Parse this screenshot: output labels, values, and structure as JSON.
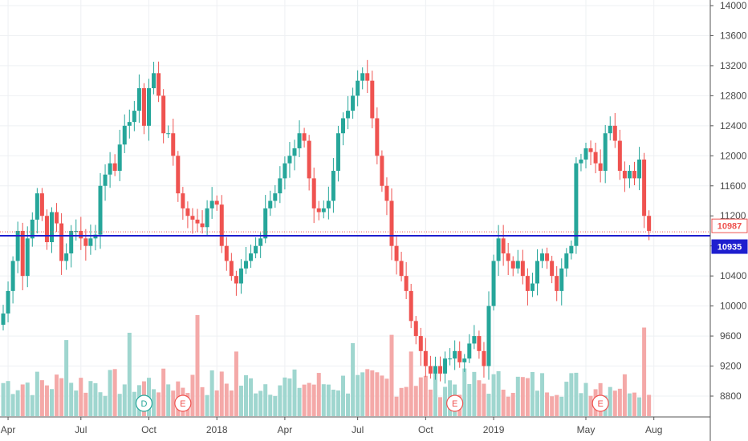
{
  "chart_data": {
    "type": "candlestick",
    "colors": {
      "up": "#26a69a",
      "down": "#ef5350",
      "up_volume": "#9fd6cf",
      "down_volume": "#f4a9a8",
      "h_line": "#1e1ecf",
      "grid": "#eef0f3"
    },
    "y_axis": {
      "ylim": [
        8500,
        14000
      ],
      "ticks": [
        14000,
        13600,
        13200,
        12800,
        12400,
        12000,
        11600,
        11200,
        10800,
        10400,
        10000,
        9600,
        9200,
        8800
      ]
    },
    "x_axis": {
      "ticks": [
        {
          "label": "Apr",
          "bar": 1
        },
        {
          "label": "Jul",
          "bar": 16
        },
        {
          "label": "Oct",
          "bar": 30
        },
        {
          "label": "2018",
          "bar": 44
        },
        {
          "label": "Apr",
          "bar": 58
        },
        {
          "label": "Jul",
          "bar": 73
        },
        {
          "label": "Oct",
          "bar": 87
        },
        {
          "label": "2019",
          "bar": 101
        },
        {
          "label": "May",
          "bar": 120
        },
        {
          "label": "Aug",
          "bar": 134
        }
      ]
    },
    "price_labels": [
      {
        "value": 10987,
        "text": "10987",
        "style": "outline"
      },
      {
        "value": 10935,
        "text": "10935",
        "style": "filled"
      }
    ],
    "horizontal_lines": [
      {
        "value": 10935,
        "style": "solid"
      },
      {
        "value": 10987,
        "style": "dotted"
      }
    ],
    "event_markers": [
      {
        "letter": "D",
        "bar": 29,
        "kind": "dividend"
      },
      {
        "letter": "E",
        "bar": 37,
        "kind": "earnings"
      },
      {
        "letter": "E",
        "bar": 93,
        "kind": "earnings"
      },
      {
        "letter": "E",
        "bar": 123,
        "kind": "earnings"
      }
    ],
    "volume_scale_max": 100,
    "closes": [
      9900,
      10200,
      10600,
      11000,
      10400,
      10900,
      11150,
      11500,
      11200,
      10850,
      11250,
      11100,
      10600,
      10700,
      11000,
      11000,
      10900,
      10800,
      10900,
      10950,
      11600,
      11750,
      11900,
      11800,
      12150,
      12400,
      12450,
      12600,
      12900,
      12400,
      12900,
      13100,
      12800,
      12300,
      12300,
      12000,
      11500,
      11300,
      11200,
      11150,
      11100,
      11050,
      11300,
      11400,
      11350,
      10800,
      10600,
      10400,
      10300,
      10500,
      10600,
      10700,
      10800,
      10900,
      11300,
      11400,
      11500,
      11700,
      11900,
      12000,
      12100,
      12300,
      12200,
      11700,
      11300,
      11250,
      11300,
      11400,
      11800,
      12300,
      12500,
      12600,
      12800,
      13000,
      13100,
      13000,
      12500,
      12000,
      11600,
      11400,
      10800,
      10600,
      10400,
      10200,
      9800,
      9600,
      9400,
      9200,
      9100,
      9200,
      9100,
      9300,
      9300,
      9400,
      9250,
      9300,
      9500,
      9600,
      9400,
      9200,
      10000,
      10600,
      10900,
      10700,
      10600,
      10500,
      10600,
      10400,
      10200,
      10300,
      10600,
      10700,
      10600,
      10400,
      10200,
      10500,
      10700,
      10800,
      11900,
      11950,
      12100,
      12050,
      11900,
      11800,
      12300,
      12400,
      12200,
      11800,
      11700,
      11800,
      11700,
      11950,
      11200,
      11000
    ]
  }
}
